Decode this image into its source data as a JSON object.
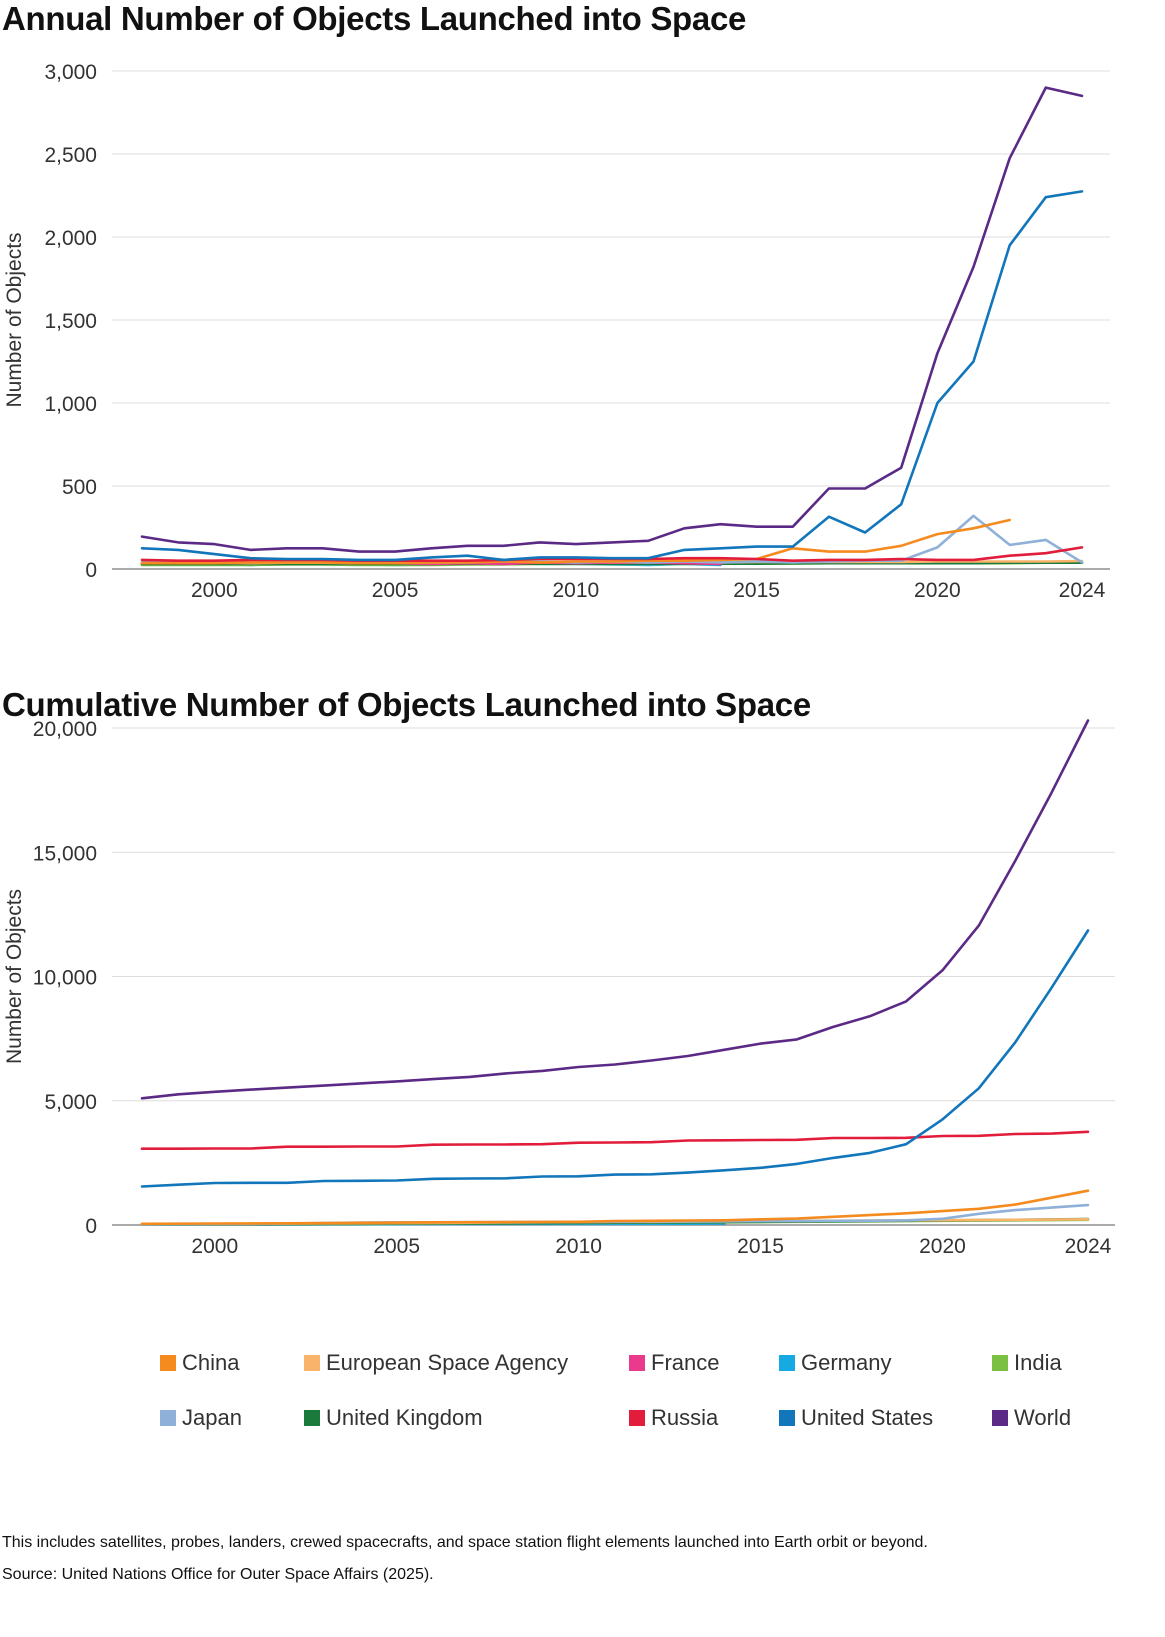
{
  "colors": {
    "China": "#f58b1f",
    "European Space Agency": "#f9b36b",
    "France": "#ea3a8d",
    "Germany": "#17a9e1",
    "India": "#7bbf43",
    "Japan": "#8fb0d8",
    "United Kingdom": "#1a7a3c",
    "Russia": "#e21d3b",
    "United States": "#1276bb",
    "World": "#5b2a86",
    "grid": "#dddddd",
    "axis": "#777777"
  },
  "chart_data": [
    {
      "type": "line",
      "title": "Annual Number of Objects Launched into Space",
      "ylabel": "Number of Objects",
      "xlabel": "",
      "xlim": [
        1998,
        2024
      ],
      "ylim": [
        0,
        3000
      ],
      "y_ticks": [
        0,
        500,
        1000,
        1500,
        2000,
        2500,
        3000
      ],
      "y_tick_labels": [
        "0",
        "500",
        "1,000",
        "1,500",
        "2,000",
        "2,500",
        "3,000"
      ],
      "x_ticks": [
        2000,
        2005,
        2010,
        2015,
        2020,
        2024
      ],
      "x_tick_labels": [
        "2000",
        "2005",
        "2010",
        "2015",
        "2020",
        "2024"
      ],
      "grid": true,
      "series": [
        {
          "name": "Germany",
          "x": [
            1998,
            1999,
            2000,
            2001,
            2002,
            2003,
            2004,
            2005,
            2006,
            2007,
            2008,
            2009,
            2010,
            2011,
            2012,
            2013,
            2014
          ],
          "values": [
            30,
            28,
            32,
            25,
            30,
            30,
            28,
            25,
            28,
            30,
            35,
            30,
            30,
            28,
            25,
            30,
            25
          ]
        },
        {
          "name": "India",
          "x": [
            1998,
            1999,
            2000,
            2001,
            2002,
            2003,
            2004,
            2005,
            2006,
            2007,
            2008,
            2009,
            2010,
            2011,
            2012,
            2013,
            2014,
            2015,
            2016,
            2017,
            2018,
            2019,
            2020,
            2021,
            2022,
            2023,
            2024
          ],
          "values": [
            25,
            25,
            25,
            25,
            28,
            28,
            25,
            25,
            25,
            28,
            28,
            30,
            30,
            30,
            30,
            30,
            32,
            32,
            32,
            35,
            35,
            35,
            35,
            35,
            35,
            38,
            38
          ]
        },
        {
          "name": "United Kingdom",
          "x": [
            1998,
            1999,
            2000,
            2001,
            2002,
            2003,
            2004,
            2005,
            2006,
            2007,
            2008,
            2009,
            2010,
            2011,
            2012,
            2013,
            2014,
            2015,
            2016,
            2017,
            2018,
            2019,
            2020,
            2021,
            2022,
            2023,
            2024
          ],
          "values": [
            30,
            30,
            30,
            30,
            30,
            30,
            30,
            30,
            30,
            32,
            32,
            32,
            32,
            32,
            32,
            32,
            32,
            32,
            35,
            35,
            35,
            35,
            35,
            35,
            38,
            38,
            38
          ]
        },
        {
          "name": "European Space Agency",
          "x": [
            1998,
            1999,
            2000,
            2001,
            2002,
            2003,
            2004,
            2005,
            2006,
            2007,
            2008,
            2009,
            2010,
            2011,
            2012,
            2013,
            2014,
            2015,
            2016,
            2017,
            2018,
            2019,
            2020,
            2021,
            2022,
            2023,
            2024
          ],
          "values": [
            35,
            35,
            38,
            35,
            38,
            38,
            35,
            35,
            38,
            38,
            40,
            40,
            38,
            38,
            40,
            40,
            40,
            42,
            42,
            42,
            42,
            42,
            45,
            45,
            45,
            45,
            48
          ]
        },
        {
          "name": "France",
          "x": [
            1998,
            1999,
            2000,
            2001,
            2002,
            2003,
            2004,
            2005,
            2006,
            2007,
            2008,
            2009,
            2010,
            2011,
            2012,
            2013,
            2014
          ],
          "values": [
            40,
            40,
            45,
            40,
            45,
            45,
            40,
            35,
            30,
            35,
            30,
            40,
            35,
            40,
            40,
            35,
            30
          ]
        },
        {
          "name": "Japan",
          "x": [
            1998,
            1999,
            2000,
            2001,
            2002,
            2003,
            2004,
            2005,
            2006,
            2007,
            2008,
            2009,
            2010,
            2011,
            2012,
            2013,
            2014,
            2015,
            2016,
            2017,
            2018,
            2019,
            2020,
            2021,
            2022,
            2023,
            2024
          ],
          "values": [
            40,
            35,
            40,
            40,
            45,
            45,
            40,
            35,
            40,
            40,
            45,
            45,
            40,
            45,
            40,
            45,
            40,
            45,
            40,
            45,
            50,
            50,
            130,
            320,
            145,
            175,
            40
          ]
        },
        {
          "name": "China",
          "x": [
            1998,
            1999,
            2000,
            2001,
            2002,
            2003,
            2004,
            2005,
            2006,
            2007,
            2008,
            2009,
            2010,
            2011,
            2012,
            2013,
            2014,
            2015,
            2016,
            2017,
            2018,
            2019,
            2020,
            2021,
            2022
          ],
          "values": [
            35,
            35,
            35,
            40,
            40,
            40,
            35,
            35,
            40,
            40,
            45,
            40,
            45,
            45,
            50,
            50,
            55,
            60,
            125,
            105,
            105,
            140,
            210,
            245,
            295
          ]
        },
        {
          "name": "Russia",
          "x": [
            1998,
            1999,
            2000,
            2001,
            2002,
            2003,
            2004,
            2005,
            2006,
            2007,
            2008,
            2009,
            2010,
            2011,
            2012,
            2013,
            2014,
            2015,
            2016,
            2017,
            2018,
            2019,
            2020,
            2021,
            2022,
            2023,
            2024
          ],
          "values": [
            55,
            50,
            50,
            55,
            55,
            55,
            50,
            50,
            50,
            50,
            55,
            60,
            60,
            60,
            60,
            65,
            65,
            60,
            50,
            55,
            55,
            60,
            55,
            55,
            80,
            95,
            130
          ]
        },
        {
          "name": "United States",
          "x": [
            1998,
            1999,
            2000,
            2001,
            2002,
            2003,
            2004,
            2005,
            2006,
            2007,
            2008,
            2009,
            2010,
            2011,
            2012,
            2013,
            2014,
            2015,
            2016,
            2017,
            2018,
            2019,
            2020,
            2021,
            2022,
            2023,
            2024
          ],
          "values": [
            125,
            115,
            90,
            65,
            60,
            60,
            55,
            55,
            70,
            80,
            55,
            70,
            70,
            65,
            65,
            115,
            125,
            135,
            135,
            315,
            220,
            390,
            1000,
            1250,
            1950,
            2240,
            2275
          ]
        },
        {
          "name": "World",
          "x": [
            1998,
            1999,
            2000,
            2001,
            2002,
            2003,
            2004,
            2005,
            2006,
            2007,
            2008,
            2009,
            2010,
            2011,
            2012,
            2013,
            2014,
            2015,
            2016,
            2017,
            2018,
            2019,
            2020,
            2021,
            2022,
            2023,
            2024
          ],
          "values": [
            195,
            160,
            150,
            115,
            125,
            125,
            105,
            105,
            125,
            140,
            140,
            160,
            150,
            160,
            170,
            245,
            270,
            255,
            255,
            485,
            485,
            610,
            1300,
            1820,
            2475,
            2900,
            2850
          ]
        }
      ]
    },
    {
      "type": "line",
      "title": "Cumulative Number of Objects Launched into Space",
      "ylabel": "Number of Objects",
      "xlabel": "",
      "xlim": [
        1998,
        2024
      ],
      "ylim": [
        0,
        20000
      ],
      "y_ticks": [
        0,
        5000,
        10000,
        15000,
        20000
      ],
      "y_tick_labels": [
        "0",
        "5,000",
        "10,000",
        "15,000",
        "20,000"
      ],
      "x_ticks": [
        2000,
        2005,
        2010,
        2015,
        2020,
        2024
      ],
      "x_tick_labels": [
        "2000",
        "2005",
        "2010",
        "2015",
        "2020",
        "2024"
      ],
      "grid": true,
      "series": [
        {
          "name": "France",
          "x": [
            1998,
            2000,
            2002,
            2004,
            2006,
            2008,
            2010,
            2012,
            2014
          ],
          "values": [
            20,
            25,
            30,
            35,
            40,
            45,
            50,
            55,
            60
          ]
        },
        {
          "name": "Germany",
          "x": [
            1998,
            2000,
            2002,
            2004,
            2006,
            2008,
            2010,
            2012,
            2014
          ],
          "values": [
            15,
            20,
            25,
            30,
            35,
            40,
            45,
            50,
            55
          ]
        },
        {
          "name": "India",
          "x": [
            1998,
            2000,
            2002,
            2004,
            2006,
            2008,
            2010,
            2012,
            2014,
            2016,
            2018,
            2020,
            2022,
            2024
          ],
          "values": [
            20,
            25,
            35,
            45,
            55,
            65,
            80,
            95,
            110,
            130,
            150,
            170,
            190,
            210
          ]
        },
        {
          "name": "United Kingdom",
          "x": [
            1998,
            2000,
            2002,
            2004,
            2006,
            2008,
            2010,
            2012,
            2014,
            2016,
            2018,
            2020,
            2022,
            2024
          ],
          "values": [
            25,
            30,
            40,
            50,
            60,
            70,
            85,
            100,
            115,
            135,
            160,
            185,
            210,
            240
          ]
        },
        {
          "name": "European Space Agency",
          "x": [
            1998,
            2000,
            2002,
            2004,
            2006,
            2008,
            2010,
            2012,
            2014,
            2016,
            2018,
            2020,
            2022,
            2024
          ],
          "values": [
            30,
            40,
            55,
            70,
            85,
            100,
            115,
            130,
            150,
            165,
            180,
            195,
            210,
            230
          ]
        },
        {
          "name": "Japan",
          "x": [
            1998,
            2000,
            2002,
            2004,
            2006,
            2008,
            2010,
            2012,
            2014,
            2016,
            2018,
            2019,
            2020,
            2021,
            2022,
            2023,
            2024
          ],
          "values": [
            20,
            40,
            60,
            100,
            110,
            120,
            130,
            140,
            150,
            160,
            175,
            190,
            250,
            450,
            600,
            700,
            800
          ]
        },
        {
          "name": "China",
          "x": [
            1998,
            2000,
            2002,
            2004,
            2006,
            2008,
            2010,
            2011,
            2012,
            2013,
            2014,
            2015,
            2016,
            2017,
            2018,
            2019,
            2020,
            2021,
            2022,
            2023,
            2024
          ],
          "values": [
            50,
            60,
            70,
            90,
            110,
            120,
            130,
            160,
            170,
            180,
            190,
            230,
            260,
            330,
            400,
            470,
            560,
            650,
            820,
            1100,
            1380
          ]
        },
        {
          "name": "Russia",
          "x": [
            1998,
            1999,
            2000,
            2001,
            2002,
            2003,
            2004,
            2005,
            2006,
            2007,
            2008,
            2009,
            2010,
            2011,
            2012,
            2013,
            2014,
            2015,
            2016,
            2017,
            2018,
            2019,
            2020,
            2021,
            2022,
            2023,
            2024
          ],
          "values": [
            3070,
            3070,
            3080,
            3080,
            3150,
            3150,
            3160,
            3160,
            3230,
            3240,
            3240,
            3250,
            3310,
            3320,
            3330,
            3400,
            3410,
            3420,
            3430,
            3500,
            3500,
            3510,
            3580,
            3590,
            3660,
            3680,
            3750
          ]
        },
        {
          "name": "United States",
          "x": [
            1998,
            1999,
            2000,
            2001,
            2002,
            2003,
            2004,
            2005,
            2006,
            2007,
            2008,
            2009,
            2010,
            2011,
            2012,
            2013,
            2014,
            2015,
            2016,
            2017,
            2018,
            2019,
            2020,
            2021,
            2022,
            2023,
            2024
          ],
          "values": [
            1550,
            1620,
            1690,
            1700,
            1700,
            1770,
            1780,
            1790,
            1860,
            1870,
            1880,
            1950,
            1960,
            2030,
            2040,
            2110,
            2200,
            2300,
            2460,
            2700,
            2900,
            3250,
            4250,
            5500,
            7350,
            9550,
            11850
          ]
        },
        {
          "name": "World",
          "x": [
            1998,
            1999,
            2000,
            2001,
            2002,
            2003,
            2004,
            2005,
            2006,
            2007,
            2008,
            2009,
            2010,
            2011,
            2012,
            2013,
            2014,
            2015,
            2016,
            2017,
            2018,
            2019,
            2020,
            2021,
            2022,
            2023,
            2024
          ],
          "values": [
            5100,
            5260,
            5360,
            5450,
            5530,
            5610,
            5700,
            5780,
            5870,
            5960,
            6100,
            6200,
            6360,
            6460,
            6620,
            6800,
            7050,
            7300,
            7470,
            7970,
            8400,
            9000,
            10250,
            12050,
            14650,
            17400,
            20300
          ]
        }
      ]
    }
  ],
  "legend": [
    {
      "name": "China"
    },
    {
      "name": "European Space Agency"
    },
    {
      "name": "France"
    },
    {
      "name": "Germany"
    },
    {
      "name": "India"
    },
    {
      "name": "Japan"
    },
    {
      "name": "United Kingdom"
    },
    {
      "name": "Russia"
    },
    {
      "name": "United States"
    },
    {
      "name": "World"
    }
  ],
  "footnotes": {
    "note": "This includes satellites, probes, landers, crewed spacecrafts, and space station flight elements launched into Earth orbit or beyond.",
    "source": "Source: United Nations Office for Outer Space Affairs (2025)."
  }
}
